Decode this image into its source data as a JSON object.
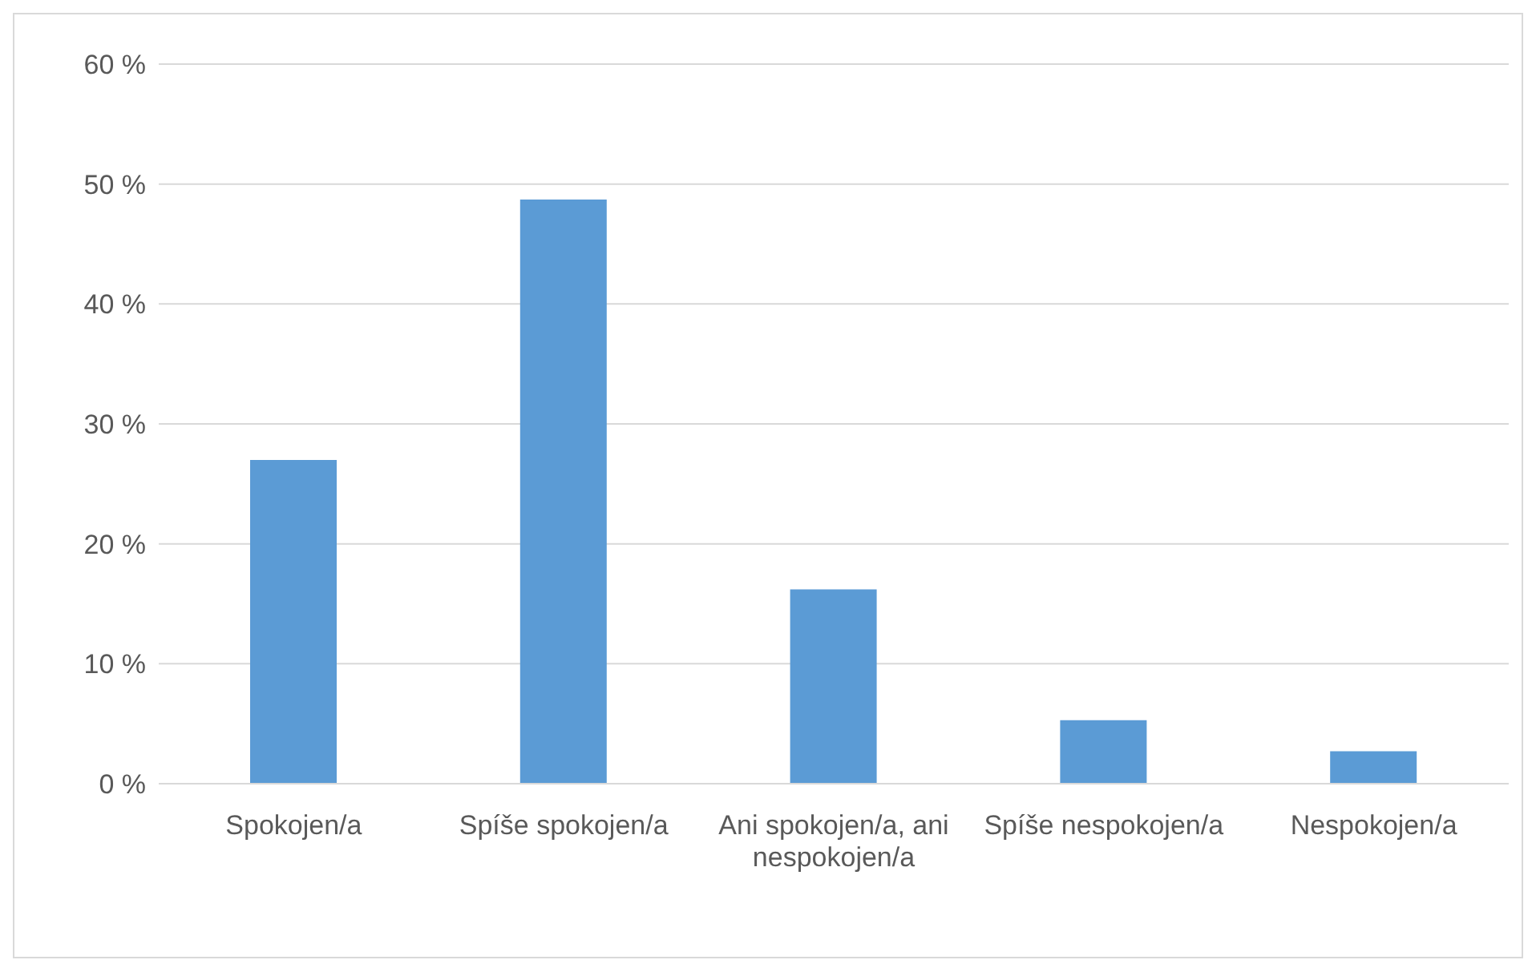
{
  "chart_data": {
    "type": "bar",
    "categories": [
      "Spokojen/a",
      "Spíše spokojen/a",
      "Ani spokojen/a, ani nespokojen/a",
      "Spíše nespokojen/a",
      "Nespokojen/a"
    ],
    "values": [
      27,
      48.7,
      16.2,
      5.3,
      2.7
    ],
    "color": "#5b9bd5",
    "ylim": [
      0,
      60
    ],
    "yticks": [
      {
        "value": 0,
        "label": "0 %"
      },
      {
        "value": 10,
        "label": "10 %"
      },
      {
        "value": 20,
        "label": "20 %"
      },
      {
        "value": 30,
        "label": "30 %"
      },
      {
        "value": 40,
        "label": "40 %"
      },
      {
        "value": 50,
        "label": "50 %"
      },
      {
        "value": 60,
        "label": "60 %"
      }
    ],
    "grid": "y"
  }
}
